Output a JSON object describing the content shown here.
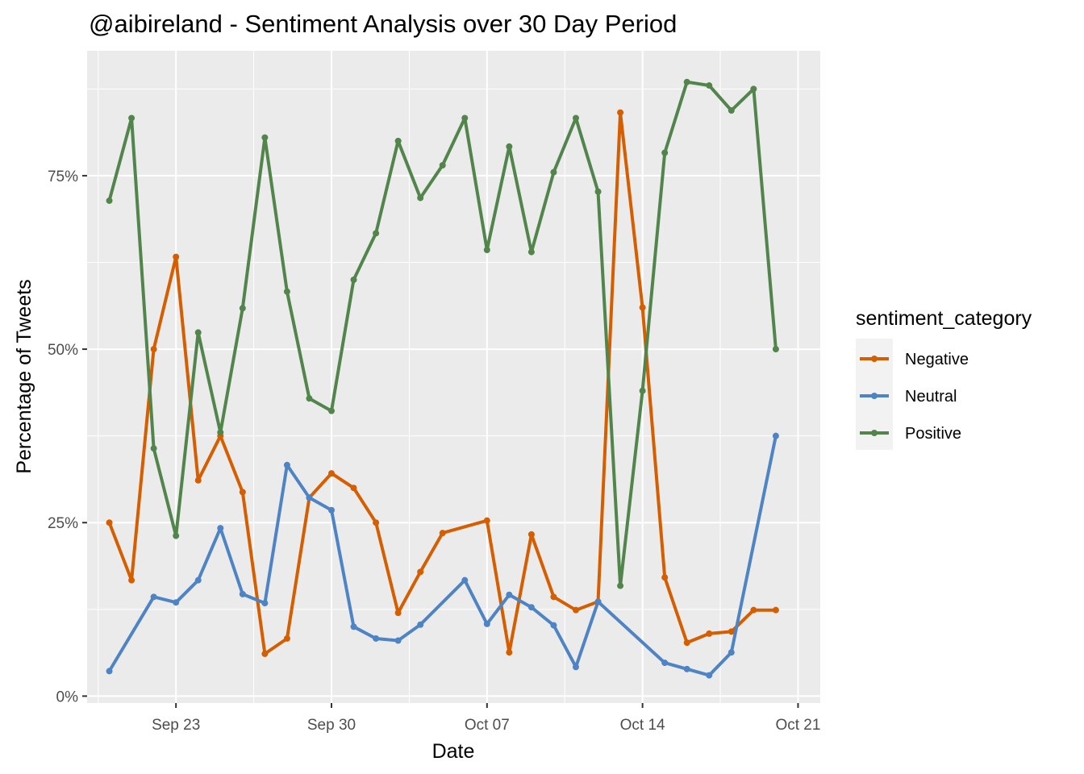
{
  "chart_data": {
    "type": "line",
    "title": "@aibireland - Sentiment Analysis over 30 Day Period",
    "xlabel": "Date",
    "ylabel": "Percentage of Tweets",
    "x_ticks": [
      {
        "date": "2024-09-23",
        "label": "Sep 23"
      },
      {
        "date": "2024-09-30",
        "label": "Sep 30"
      },
      {
        "date": "2024-10-07",
        "label": "Oct 07"
      },
      {
        "date": "2024-10-14",
        "label": "Oct 14"
      },
      {
        "date": "2024-10-21",
        "label": "Oct 21"
      }
    ],
    "xlim": [
      "2024-09-19",
      "2024-10-22"
    ],
    "y_ticks": [
      {
        "value": 0,
        "label": "0%"
      },
      {
        "value": 25,
        "label": "25%"
      },
      {
        "value": 50,
        "label": "50%"
      },
      {
        "value": 75,
        "label": "75%"
      }
    ],
    "ylim": [
      -1,
      93
    ],
    "grid": true,
    "legend": {
      "title": "sentiment_category",
      "position": "right"
    },
    "series": [
      {
        "name": "Negative",
        "color": "#D55E00",
        "points": [
          {
            "x": "2024-09-20",
            "y": 25
          },
          {
            "x": "2024-09-21",
            "y": 16.7
          },
          {
            "x": "2024-09-22",
            "y": 50
          },
          {
            "x": "2024-09-23",
            "y": 63.3
          },
          {
            "x": "2024-09-24",
            "y": 31.1
          },
          {
            "x": "2024-09-25",
            "y": 37.5
          },
          {
            "x": "2024-09-26",
            "y": 29.4
          },
          {
            "x": "2024-09-27",
            "y": 6.1
          },
          {
            "x": "2024-09-28",
            "y": 8.3
          },
          {
            "x": "2024-09-29",
            "y": 28.6
          },
          {
            "x": "2024-09-30",
            "y": 32.1
          },
          {
            "x": "2024-10-01",
            "y": 30
          },
          {
            "x": "2024-10-02",
            "y": 25
          },
          {
            "x": "2024-10-03",
            "y": 12
          },
          {
            "x": "2024-10-04",
            "y": 17.9
          },
          {
            "x": "2024-10-05",
            "y": 23.5
          },
          {
            "x": "2024-10-07",
            "y": 25.3
          },
          {
            "x": "2024-10-08",
            "y": 6.3
          },
          {
            "x": "2024-10-09",
            "y": 23.3
          },
          {
            "x": "2024-10-10",
            "y": 14.3
          },
          {
            "x": "2024-10-11",
            "y": 12.4
          },
          {
            "x": "2024-10-12",
            "y": 13.6
          },
          {
            "x": "2024-10-13",
            "y": 84.1
          },
          {
            "x": "2024-10-14",
            "y": 56
          },
          {
            "x": "2024-10-15",
            "y": 17.1
          },
          {
            "x": "2024-10-16",
            "y": 7.7
          },
          {
            "x": "2024-10-17",
            "y": 9
          },
          {
            "x": "2024-10-18",
            "y": 9.3
          },
          {
            "x": "2024-10-19",
            "y": 12.4
          },
          {
            "x": "2024-10-20",
            "y": 12.4
          }
        ]
      },
      {
        "name": "Neutral",
        "color": "#4E84C4",
        "points": [
          {
            "x": "2024-09-20",
            "y": 3.6
          },
          {
            "x": "2024-09-22",
            "y": 14.3
          },
          {
            "x": "2024-09-23",
            "y": 13.5
          },
          {
            "x": "2024-09-24",
            "y": 16.7
          },
          {
            "x": "2024-09-25",
            "y": 24.2
          },
          {
            "x": "2024-09-26",
            "y": 14.7
          },
          {
            "x": "2024-09-27",
            "y": 13.4
          },
          {
            "x": "2024-09-28",
            "y": 33.3
          },
          {
            "x": "2024-09-29",
            "y": 28.6
          },
          {
            "x": "2024-09-30",
            "y": 26.8
          },
          {
            "x": "2024-10-01",
            "y": 10
          },
          {
            "x": "2024-10-02",
            "y": 8.3
          },
          {
            "x": "2024-10-03",
            "y": 8
          },
          {
            "x": "2024-10-04",
            "y": 10.3
          },
          {
            "x": "2024-10-06",
            "y": 16.7
          },
          {
            "x": "2024-10-07",
            "y": 10.4
          },
          {
            "x": "2024-10-08",
            "y": 14.6
          },
          {
            "x": "2024-10-09",
            "y": 12.8
          },
          {
            "x": "2024-10-10",
            "y": 10.2
          },
          {
            "x": "2024-10-11",
            "y": 4.2
          },
          {
            "x": "2024-10-12",
            "y": 13.6
          },
          {
            "x": "2024-10-15",
            "y": 4.8
          },
          {
            "x": "2024-10-16",
            "y": 3.9
          },
          {
            "x": "2024-10-17",
            "y": 3
          },
          {
            "x": "2024-10-18",
            "y": 6.3
          },
          {
            "x": "2024-10-20",
            "y": 37.5
          }
        ]
      },
      {
        "name": "Positive",
        "color": "#52854C",
        "points": [
          {
            "x": "2024-09-20",
            "y": 71.4
          },
          {
            "x": "2024-09-21",
            "y": 83.3
          },
          {
            "x": "2024-09-22",
            "y": 35.7
          },
          {
            "x": "2024-09-23",
            "y": 23.1
          },
          {
            "x": "2024-09-24",
            "y": 52.4
          },
          {
            "x": "2024-09-25",
            "y": 38
          },
          {
            "x": "2024-09-26",
            "y": 55.9
          },
          {
            "x": "2024-09-27",
            "y": 80.5
          },
          {
            "x": "2024-09-28",
            "y": 58.3
          },
          {
            "x": "2024-09-29",
            "y": 42.9
          },
          {
            "x": "2024-09-30",
            "y": 41.1
          },
          {
            "x": "2024-10-01",
            "y": 60
          },
          {
            "x": "2024-10-02",
            "y": 66.7
          },
          {
            "x": "2024-10-03",
            "y": 80
          },
          {
            "x": "2024-10-04",
            "y": 71.8
          },
          {
            "x": "2024-10-05",
            "y": 76.5
          },
          {
            "x": "2024-10-06",
            "y": 83.3
          },
          {
            "x": "2024-10-07",
            "y": 64.3
          },
          {
            "x": "2024-10-08",
            "y": 79.2
          },
          {
            "x": "2024-10-09",
            "y": 64
          },
          {
            "x": "2024-10-10",
            "y": 75.5
          },
          {
            "x": "2024-10-11",
            "y": 83.3
          },
          {
            "x": "2024-10-12",
            "y": 72.7
          },
          {
            "x": "2024-10-13",
            "y": 15.9
          },
          {
            "x": "2024-10-14",
            "y": 44
          },
          {
            "x": "2024-10-15",
            "y": 78.3
          },
          {
            "x": "2024-10-16",
            "y": 88.5
          },
          {
            "x": "2024-10-17",
            "y": 88
          },
          {
            "x": "2024-10-18",
            "y": 84.4
          },
          {
            "x": "2024-10-19",
            "y": 87.5
          },
          {
            "x": "2024-10-20",
            "y": 50
          }
        ]
      }
    ]
  }
}
